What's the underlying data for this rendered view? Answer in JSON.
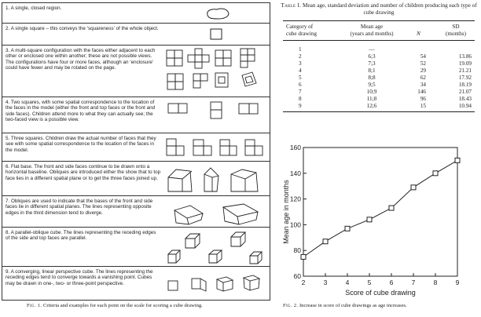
{
  "criteria": [
    {
      "text": "1. A single, closed region."
    },
    {
      "text": "2. A single square – this conveys the ‘squareness’ of the whole object."
    },
    {
      "text": "3. A multi-square configuration with the faces either adjacent to each other or enclosed one within another; these are not possible views. The configurations have four or more faces, although an ‘enclosure’ could have fewer and may be rotated on the page."
    },
    {
      "text": "4. Two squares, with some spatial correspondence to the location of the faces in the model (either the front and top faces or the front and side faces). Children attend more to what they can actually see; the two-faced view is a possible view."
    },
    {
      "text": "5. Three squares. Children draw the actual number of faces that they see with some spatial correspondence to the location of the faces in the model."
    },
    {
      "text": "6. Flat base. The front and side faces continue to be drawn onto a horizontal baseline. Obliques are introduced either the show that to top face lies in a different spatial plane or to get the three faces joined up."
    },
    {
      "text": "7. Obliques are used to indicate that the bases of the front and side faces lie in different spatial planes. The lines representing opposite edges in the third dimension tend to diverge."
    },
    {
      "text": "8. A parallel-oblique cube. The lines representing the receding edges of the side and top faces are parallel."
    },
    {
      "text": "9. A converging, linear perspective cube. The lines representing the receding edges tend to converge towards a vanishing point. Cubes may be drawn in one-, two- or three-point perspective."
    }
  ],
  "fig1_caption": {
    "label": "Fig. 1.",
    "text": "Criteria and examples for each point on the scale for scoring a cube drawing."
  },
  "table1": {
    "label": "Table I.",
    "title": "Mean age, standard deviation and number of children producing each type of cube drawing",
    "headers": {
      "category": [
        "Category of",
        "cube drawing"
      ],
      "mean_age": [
        "Mean age",
        "(years and months)"
      ],
      "n": "N",
      "sd": [
        "SD",
        "(months)"
      ]
    },
    "rows": [
      {
        "category": "1",
        "mean_age": "—",
        "n": "",
        "sd": ""
      },
      {
        "category": "2",
        "mean_age": "6;3",
        "n": "54",
        "sd": "13.86"
      },
      {
        "category": "3",
        "mean_age": "7;3",
        "n": "52",
        "sd": "19.09"
      },
      {
        "category": "4",
        "mean_age": "8;1",
        "n": "29",
        "sd": "21.21"
      },
      {
        "category": "5",
        "mean_age": "8;8",
        "n": "62",
        "sd": "17.92"
      },
      {
        "category": "6",
        "mean_age": "9;5",
        "n": "34",
        "sd": "18.19"
      },
      {
        "category": "7",
        "mean_age": "10;9",
        "n": "146",
        "sd": "21.07"
      },
      {
        "category": "8",
        "mean_age": "11;8",
        "n": "96",
        "sd": "18.43"
      },
      {
        "category": "9",
        "mean_age": "12;6",
        "n": "15",
        "sd": "10.94"
      }
    ]
  },
  "chart_data": {
    "type": "line",
    "x": [
      2,
      3,
      4,
      5,
      6,
      7,
      8,
      9
    ],
    "series": [
      {
        "values": [
          75,
          87,
          97,
          104,
          113,
          129,
          140,
          150
        ]
      }
    ],
    "xlabel": "Score of cube drawing",
    "ylabel": "Mean age in months",
    "xlim": [
      2,
      9
    ],
    "ylim": [
      60,
      160
    ],
    "xticks": [
      2,
      3,
      4,
      5,
      6,
      7,
      8,
      9
    ],
    "yticks": [
      60,
      80,
      100,
      120,
      140,
      160
    ],
    "grid": false,
    "marker": "open-square"
  },
  "fig2_caption": {
    "label": "Fig. 2.",
    "text": "Increase in score of cube drawings as age increases."
  }
}
